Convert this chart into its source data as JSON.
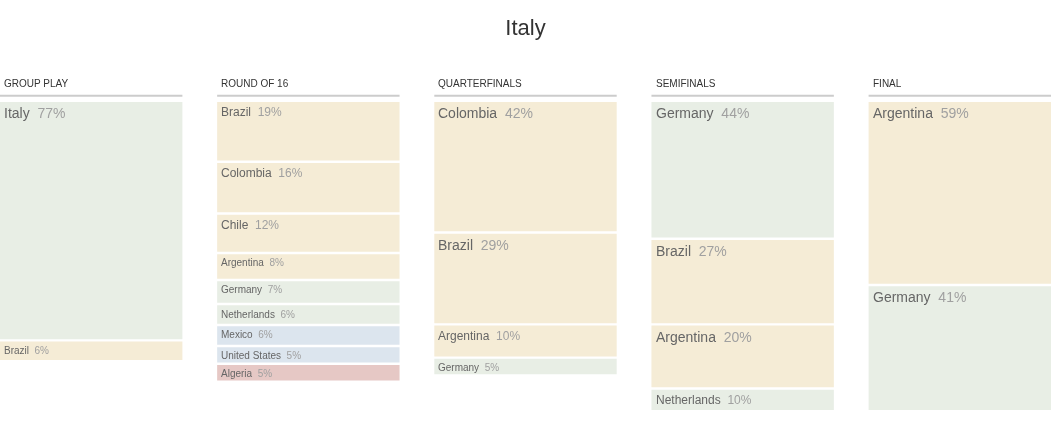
{
  "chart_data": {
    "type": "other",
    "title": "Italy",
    "categories": [
      "GROUP PLAY",
      "ROUND OF 16",
      "QUARTERFINALS",
      "SEMIFINALS",
      "FINAL"
    ],
    "series": [
      {
        "name": "Italy",
        "color": "#e8eee5",
        "values": [
          77,
          null,
          null,
          null,
          null
        ],
        "value_labels": [
          "77%",
          null,
          null,
          null,
          null
        ]
      },
      {
        "name": "Brazil",
        "color": "#f5ecd6",
        "values": [
          6,
          19,
          29,
          27,
          null
        ],
        "value_labels": [
          "6%",
          "19%",
          "29%",
          "27%",
          null
        ]
      },
      {
        "name": "Colombia",
        "color": "#f5ecd6",
        "values": [
          null,
          16,
          42,
          null,
          null
        ],
        "value_labels": [
          null,
          "16%",
          "42%",
          null,
          null
        ]
      },
      {
        "name": "Chile",
        "color": "#f5ecd6",
        "values": [
          null,
          12,
          null,
          null,
          null
        ],
        "value_labels": [
          null,
          "12%",
          null,
          null,
          null
        ]
      },
      {
        "name": "Argentina",
        "color": "#f5ecd6",
        "values": [
          null,
          8,
          10,
          20,
          59
        ],
        "value_labels": [
          null,
          "8%",
          "10%",
          "20%",
          "59%"
        ]
      },
      {
        "name": "Germany",
        "color": "#e8eee5",
        "values": [
          null,
          7,
          5,
          44,
          41
        ],
        "value_labels": [
          null,
          "7%",
          "5%",
          "44%",
          "41%"
        ]
      },
      {
        "name": "Netherlands",
        "color": "#e8eee5",
        "values": [
          null,
          6,
          null,
          10,
          null
        ],
        "value_labels": [
          null,
          "6%",
          null,
          "10%",
          null
        ]
      },
      {
        "name": "Mexico",
        "color": "#dce5ee",
        "values": [
          null,
          6,
          null,
          null,
          null
        ],
        "value_labels": [
          null,
          "6%",
          null,
          null,
          null
        ]
      },
      {
        "name": "United States",
        "color": "#dce5ee",
        "values": [
          null,
          5,
          null,
          null,
          null
        ],
        "value_labels": [
          null,
          "5%",
          null,
          null,
          null
        ]
      },
      {
        "name": "Algeria",
        "color": "#e6c8c5",
        "values": [
          null,
          5,
          null,
          null,
          null
        ],
        "value_labels": [
          null,
          "5%",
          null,
          null,
          null
        ]
      }
    ]
  }
}
